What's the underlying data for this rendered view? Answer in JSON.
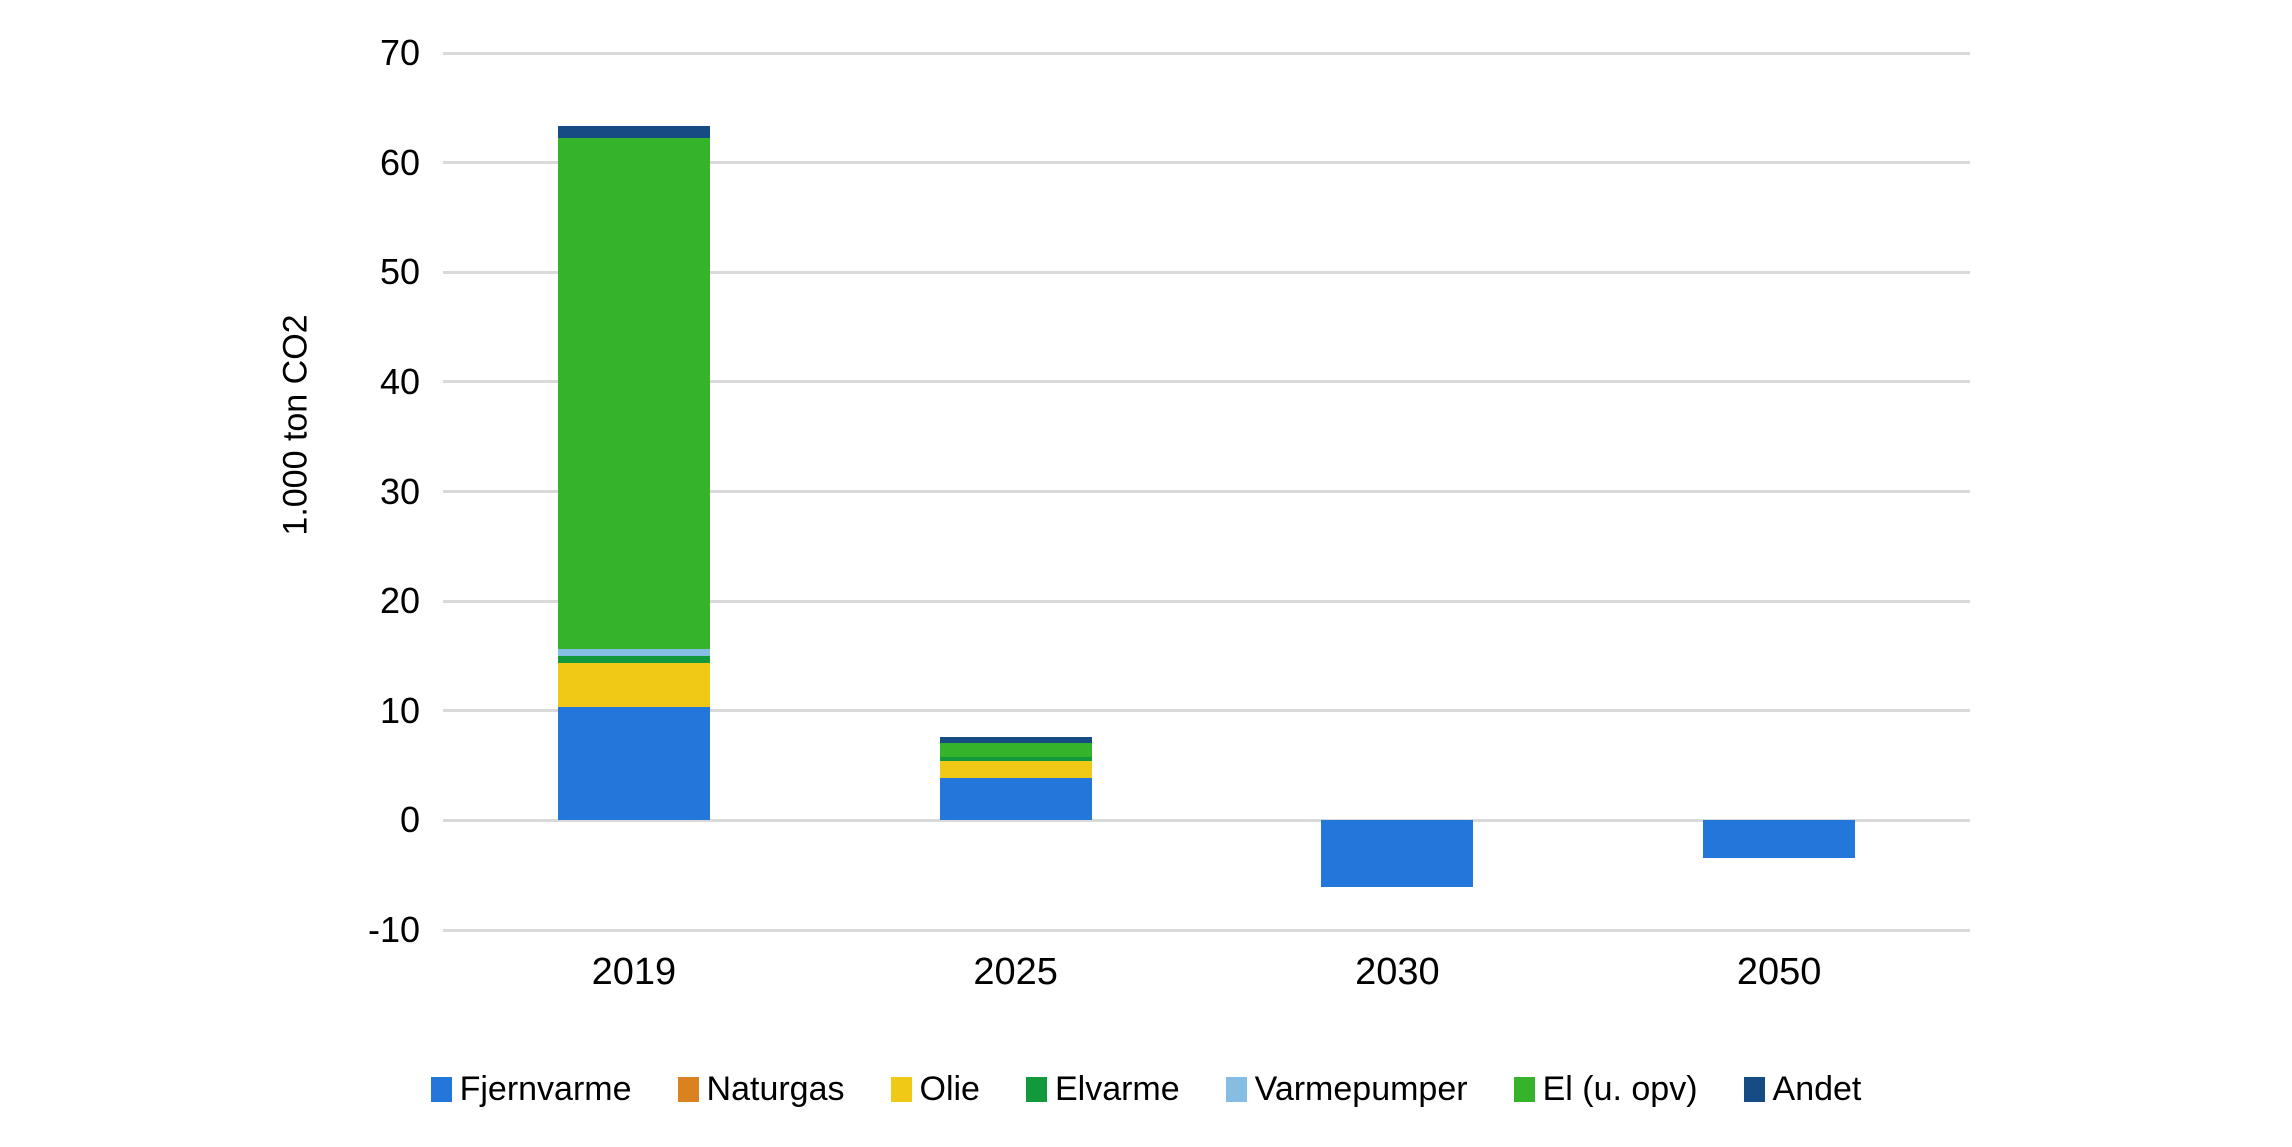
{
  "chart_data": {
    "type": "bar",
    "stacked": true,
    "title": "",
    "xlabel": "",
    "ylabel": "1.000 ton CO2",
    "categories": [
      "2019",
      "2025",
      "2030",
      "2050"
    ],
    "series": [
      {
        "name": "Fjernvarme",
        "color": "#2377DB",
        "values": [
          10.3,
          3.9,
          -6.1,
          -3.4
        ]
      },
      {
        "name": "Naturgas",
        "color": "#D9821F",
        "values": [
          0,
          0,
          0,
          0
        ]
      },
      {
        "name": "Olie",
        "color": "#EFC916",
        "values": [
          4.1,
          1.5,
          0,
          0
        ]
      },
      {
        "name": "Elvarme",
        "color": "#12993B",
        "values": [
          0.6,
          0.35,
          0,
          0
        ]
      },
      {
        "name": "Varmepumper",
        "color": "#85BEE2",
        "values": [
          0.65,
          0,
          0,
          0
        ]
      },
      {
        "name": "El (u. opv)",
        "color": "#35B42B",
        "values": [
          46.6,
          1.3,
          0,
          0
        ]
      },
      {
        "name": "Andet",
        "color": "#154C84",
        "values": [
          1.05,
          0.6,
          0,
          0
        ]
      }
    ],
    "y_ticks": [
      70,
      60,
      50,
      40,
      30,
      20,
      10,
      0,
      -10
    ],
    "ylim": [
      -10,
      70
    ],
    "grid": true,
    "legend_position": "bottom",
    "gridline_color": "#D9D9D9",
    "background_color": "#FFFFFF",
    "text_color": "#000000"
  }
}
